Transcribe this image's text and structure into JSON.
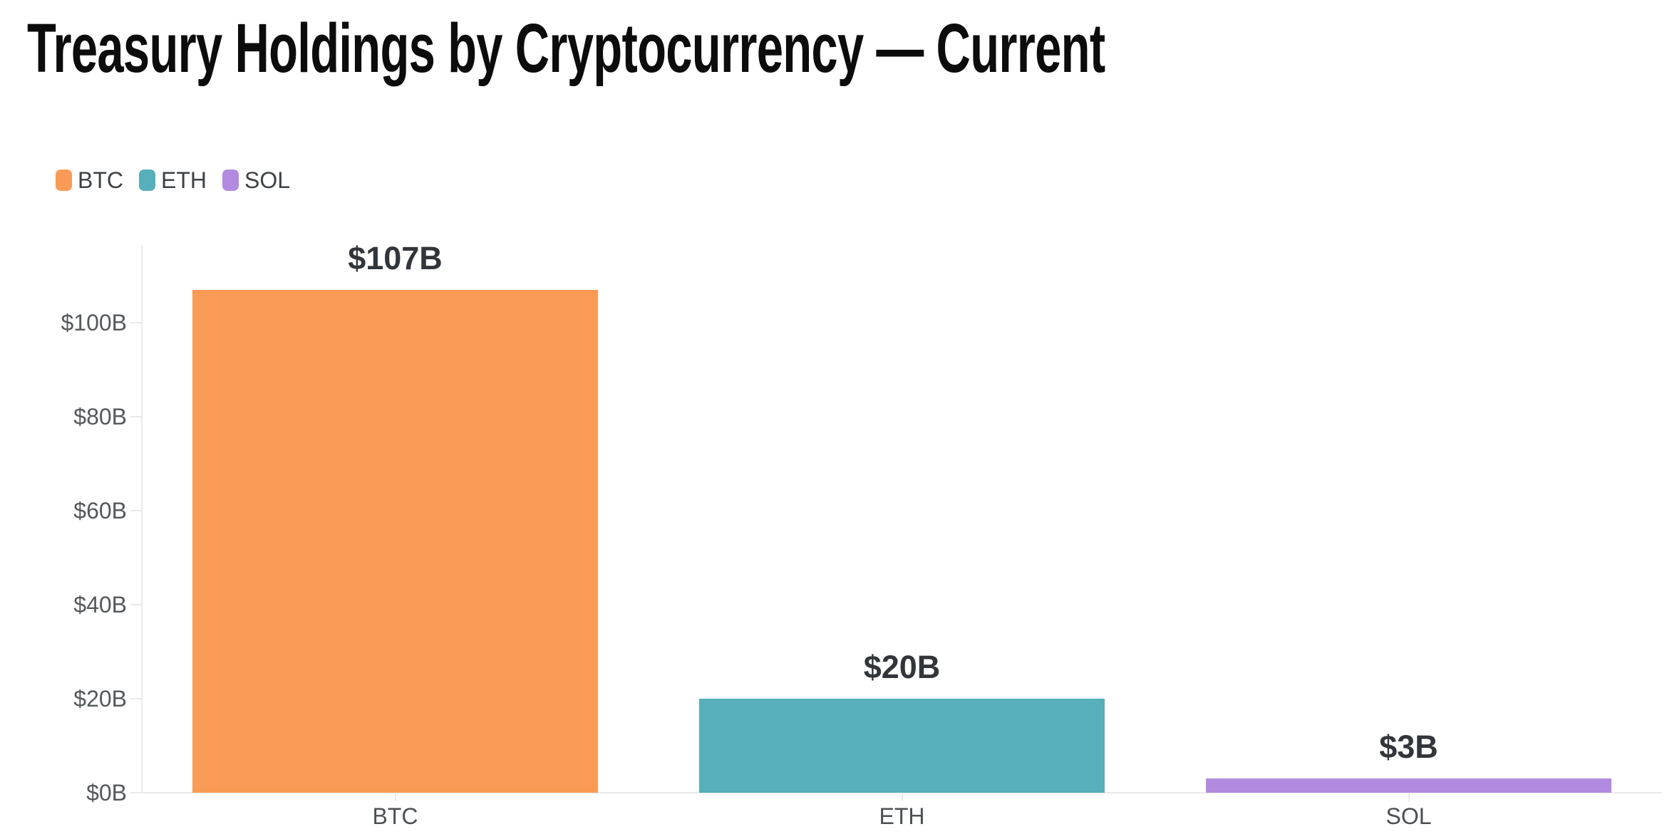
{
  "page": {
    "title": "Treasury Holdings by Cryptocurrency — Current"
  },
  "legend": {
    "items": [
      {
        "label": "BTC",
        "color": "#F99B56"
      },
      {
        "label": "ETH",
        "color": "#56AFBA"
      },
      {
        "label": "SOL",
        "color": "#B28BE0"
      }
    ]
  },
  "chart_data": {
    "type": "bar",
    "title": "Treasury Holdings by Cryptocurrency — Current",
    "categories": [
      "BTC",
      "ETH",
      "SOL"
    ],
    "values": [
      107,
      20,
      3
    ],
    "value_labels": [
      "$107B",
      "$20B",
      "$3B"
    ],
    "bar_colors": [
      "#F99B56",
      "#56AFBA",
      "#B28BE0"
    ],
    "xlabel": "",
    "ylabel": "",
    "ylim": [
      0,
      110
    ],
    "y_ticks": [
      {
        "value": 0,
        "label": "$0B"
      },
      {
        "value": 20,
        "label": "$20B"
      },
      {
        "value": 40,
        "label": "$40B"
      },
      {
        "value": 60,
        "label": "$60B"
      },
      {
        "value": 80,
        "label": "$80B"
      },
      {
        "value": 100,
        "label": "$100B"
      }
    ],
    "grid": false,
    "legend_position": "top-left",
    "axis_color": "#ECECEF",
    "tick_color": "#E9E9EC"
  }
}
